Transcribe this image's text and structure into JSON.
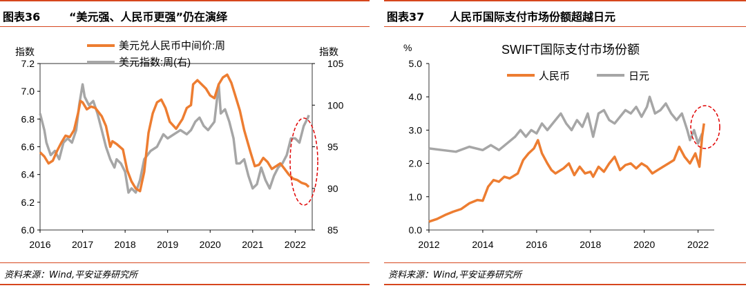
{
  "panels": [
    {
      "title_number": "图表36",
      "title_text": "“美元强、人民币更强”仍在演绎",
      "source": "资料来源：Wind,平安证券研究所"
    },
    {
      "title_number": "图表37",
      "title_text": "人民币国际支付市场份额超越日元",
      "source": "资料来源：Wind,平安证券研究所"
    }
  ],
  "chart_data": [
    {
      "type": "line",
      "title": "",
      "y_left_label": "指数",
      "y_right_label": "指数",
      "y_left_range": [
        6.0,
        7.2
      ],
      "y_left_ticks": [
        "7.2",
        "7.0",
        "6.8",
        "6.6",
        "6.4",
        "6.2",
        "6.0"
      ],
      "y_right_range": [
        85,
        105
      ],
      "y_right_ticks": [
        "105",
        "100",
        "95",
        "90",
        "85"
      ],
      "x_range": [
        2016,
        2022.4
      ],
      "x_ticks": [
        "2016",
        "2017",
        "2018",
        "2019",
        "2020",
        "2021",
        "2022"
      ],
      "colors": {
        "cny": "#ed7d31",
        "dxy": "#a6a6a6",
        "highlight": "#e00000"
      },
      "series": [
        {
          "name": "美元兑人民币中间价:周",
          "axis": "left",
          "points": [
            [
              2016.0,
              6.56
            ],
            [
              2016.1,
              6.53
            ],
            [
              2016.2,
              6.48
            ],
            [
              2016.3,
              6.5
            ],
            [
              2016.4,
              6.57
            ],
            [
              2016.5,
              6.63
            ],
            [
              2016.6,
              6.68
            ],
            [
              2016.7,
              6.67
            ],
            [
              2016.8,
              6.72
            ],
            [
              2016.9,
              6.85
            ],
            [
              2016.95,
              6.93
            ],
            [
              2017.0,
              6.92
            ],
            [
              2017.1,
              6.87
            ],
            [
              2017.2,
              6.89
            ],
            [
              2017.3,
              6.88
            ],
            [
              2017.45,
              6.82
            ],
            [
              2017.55,
              6.75
            ],
            [
              2017.65,
              6.6
            ],
            [
              2017.7,
              6.64
            ],
            [
              2017.8,
              6.62
            ],
            [
              2017.95,
              6.58
            ],
            [
              2018.05,
              6.43
            ],
            [
              2018.15,
              6.35
            ],
            [
              2018.25,
              6.3
            ],
            [
              2018.35,
              6.28
            ],
            [
              2018.45,
              6.42
            ],
            [
              2018.55,
              6.7
            ],
            [
              2018.65,
              6.84
            ],
            [
              2018.75,
              6.92
            ],
            [
              2018.85,
              6.94
            ],
            [
              2018.95,
              6.88
            ],
            [
              2019.05,
              6.78
            ],
            [
              2019.2,
              6.73
            ],
            [
              2019.35,
              6.8
            ],
            [
              2019.45,
              6.88
            ],
            [
              2019.55,
              6.9
            ],
            [
              2019.6,
              7.05
            ],
            [
              2019.7,
              7.08
            ],
            [
              2019.8,
              7.05
            ],
            [
              2019.9,
              7.02
            ],
            [
              2020.0,
              6.97
            ],
            [
              2020.1,
              6.95
            ],
            [
              2020.2,
              7.05
            ],
            [
              2020.3,
              7.1
            ],
            [
              2020.4,
              7.12
            ],
            [
              2020.5,
              7.06
            ],
            [
              2020.6,
              6.96
            ],
            [
              2020.7,
              6.86
            ],
            [
              2020.8,
              6.72
            ],
            [
              2020.95,
              6.56
            ],
            [
              2021.05,
              6.46
            ],
            [
              2021.15,
              6.47
            ],
            [
              2021.25,
              6.52
            ],
            [
              2021.35,
              6.49
            ],
            [
              2021.45,
              6.44
            ],
            [
              2021.55,
              6.46
            ],
            [
              2021.65,
              6.48
            ],
            [
              2021.75,
              6.44
            ],
            [
              2021.85,
              6.4
            ],
            [
              2021.95,
              6.37
            ],
            [
              2022.05,
              6.36
            ],
            [
              2022.15,
              6.34
            ],
            [
              2022.25,
              6.33
            ],
            [
              2022.32,
              6.31
            ]
          ]
        },
        {
          "name": "美元指数:周(右)",
          "axis": "right",
          "points": [
            [
              2016.0,
              99
            ],
            [
              2016.1,
              97
            ],
            [
              2016.15,
              95.5
            ],
            [
              2016.25,
              94
            ],
            [
              2016.35,
              94.5
            ],
            [
              2016.45,
              93.5
            ],
            [
              2016.55,
              95.5
            ],
            [
              2016.65,
              96
            ],
            [
              2016.75,
              95.5
            ],
            [
              2016.85,
              97
            ],
            [
              2016.92,
              100
            ],
            [
              2017.0,
              102.5
            ],
            [
              2017.05,
              101
            ],
            [
              2017.15,
              100
            ],
            [
              2017.25,
              100.5
            ],
            [
              2017.35,
              99
            ],
            [
              2017.45,
              97
            ],
            [
              2017.55,
              95
            ],
            [
              2017.65,
              93.5
            ],
            [
              2017.75,
              92.5
            ],
            [
              2017.8,
              93.5
            ],
            [
              2017.9,
              93
            ],
            [
              2018.0,
              92
            ],
            [
              2018.08,
              89.5
            ],
            [
              2018.15,
              90
            ],
            [
              2018.25,
              89.5
            ],
            [
              2018.35,
              91
            ],
            [
              2018.45,
              93.5
            ],
            [
              2018.6,
              94.5
            ],
            [
              2018.75,
              95
            ],
            [
              2018.9,
              96.5
            ],
            [
              2019.0,
              96
            ],
            [
              2019.15,
              96.5
            ],
            [
              2019.3,
              97
            ],
            [
              2019.45,
              96.5
            ],
            [
              2019.55,
              97
            ],
            [
              2019.65,
              98
            ],
            [
              2019.75,
              98.5
            ],
            [
              2019.85,
              97.5
            ],
            [
              2019.95,
              97
            ],
            [
              2020.1,
              98
            ],
            [
              2020.2,
              102.5
            ],
            [
              2020.25,
              99
            ],
            [
              2020.35,
              99.5
            ],
            [
              2020.45,
              98
            ],
            [
              2020.55,
              96
            ],
            [
              2020.62,
              93
            ],
            [
              2020.7,
              93
            ],
            [
              2020.8,
              93.5
            ],
            [
              2020.9,
              91.5
            ],
            [
              2021.0,
              90
            ],
            [
              2021.1,
              90.5
            ],
            [
              2021.2,
              92.5
            ],
            [
              2021.3,
              91
            ],
            [
              2021.4,
              90
            ],
            [
              2021.5,
              91.5
            ],
            [
              2021.6,
              92.5
            ],
            [
              2021.7,
              93
            ],
            [
              2021.8,
              94
            ],
            [
              2021.9,
              96
            ],
            [
              2022.0,
              96
            ],
            [
              2022.1,
              95.5
            ],
            [
              2022.2,
              97.5
            ],
            [
              2022.3,
              98.5
            ],
            [
              2022.32,
              98.8
            ]
          ]
        }
      ],
      "annotation": "highlight-ellipse"
    },
    {
      "type": "line",
      "title": "SWIFT国际支付市场份额",
      "y_label": "%",
      "y_range": [
        0.0,
        5.0
      ],
      "y_ticks": [
        "5.0",
        "4.0",
        "3.0",
        "2.0",
        "1.0",
        "0.0"
      ],
      "x_range": [
        2012,
        2022.6
      ],
      "x_ticks": [
        "2012",
        "2014",
        "2016",
        "2018",
        "2020",
        "2022"
      ],
      "colors": {
        "rmb": "#ed7d31",
        "jpy": "#a6a6a6",
        "highlight": "#e00000"
      },
      "series": [
        {
          "name": "人民币",
          "points": [
            [
              2012.0,
              0.25
            ],
            [
              2012.3,
              0.33
            ],
            [
              2012.6,
              0.45
            ],
            [
              2012.9,
              0.55
            ],
            [
              2013.2,
              0.63
            ],
            [
              2013.5,
              0.8
            ],
            [
              2013.8,
              0.9
            ],
            [
              2014.0,
              0.88
            ],
            [
              2014.2,
              1.3
            ],
            [
              2014.4,
              1.5
            ],
            [
              2014.6,
              1.45
            ],
            [
              2014.8,
              1.6
            ],
            [
              2015.0,
              1.55
            ],
            [
              2015.3,
              1.7
            ],
            [
              2015.5,
              2.1
            ],
            [
              2015.7,
              2.3
            ],
            [
              2015.9,
              2.45
            ],
            [
              2016.05,
              2.7
            ],
            [
              2016.2,
              2.3
            ],
            [
              2016.4,
              2.0
            ],
            [
              2016.55,
              1.8
            ],
            [
              2016.7,
              1.7
            ],
            [
              2017.0,
              1.85
            ],
            [
              2017.2,
              2.0
            ],
            [
              2017.4,
              1.65
            ],
            [
              2017.6,
              1.9
            ],
            [
              2017.8,
              1.7
            ],
            [
              2018.0,
              1.75
            ],
            [
              2018.1,
              1.6
            ],
            [
              2018.3,
              1.9
            ],
            [
              2018.5,
              1.75
            ],
            [
              2018.7,
              2.0
            ],
            [
              2018.9,
              2.2
            ],
            [
              2019.1,
              1.8
            ],
            [
              2019.3,
              1.95
            ],
            [
              2019.5,
              2.0
            ],
            [
              2019.7,
              1.85
            ],
            [
              2019.9,
              2.0
            ],
            [
              2020.1,
              1.9
            ],
            [
              2020.3,
              1.7
            ],
            [
              2020.5,
              1.8
            ],
            [
              2020.7,
              1.9
            ],
            [
              2020.9,
              2.0
            ],
            [
              2021.1,
              2.1
            ],
            [
              2021.3,
              2.5
            ],
            [
              2021.5,
              2.2
            ],
            [
              2021.7,
              2.0
            ],
            [
              2021.9,
              2.3
            ],
            [
              2022.05,
              1.9
            ],
            [
              2022.15,
              2.8
            ],
            [
              2022.22,
              3.2
            ]
          ]
        },
        {
          "name": "日元",
          "points": [
            [
              2012.0,
              2.45
            ],
            [
              2012.5,
              2.4
            ],
            [
              2013.0,
              2.35
            ],
            [
              2013.5,
              2.5
            ],
            [
              2014.0,
              2.4
            ],
            [
              2014.3,
              2.55
            ],
            [
              2014.6,
              2.4
            ],
            [
              2014.9,
              2.6
            ],
            [
              2015.2,
              2.8
            ],
            [
              2015.4,
              3.0
            ],
            [
              2015.6,
              2.8
            ],
            [
              2015.8,
              3.0
            ],
            [
              2016.0,
              2.9
            ],
            [
              2016.2,
              3.2
            ],
            [
              2016.4,
              3.0
            ],
            [
              2016.7,
              3.3
            ],
            [
              2016.9,
              3.5
            ],
            [
              2017.1,
              3.2
            ],
            [
              2017.3,
              3.0
            ],
            [
              2017.5,
              3.3
            ],
            [
              2017.7,
              3.1
            ],
            [
              2017.9,
              3.5
            ],
            [
              2018.1,
              2.8
            ],
            [
              2018.3,
              3.5
            ],
            [
              2018.5,
              3.6
            ],
            [
              2018.7,
              3.3
            ],
            [
              2018.9,
              3.2
            ],
            [
              2019.1,
              3.4
            ],
            [
              2019.3,
              3.6
            ],
            [
              2019.5,
              3.5
            ],
            [
              2019.7,
              3.7
            ],
            [
              2019.9,
              3.4
            ],
            [
              2020.1,
              3.7
            ],
            [
              2020.2,
              4.0
            ],
            [
              2020.4,
              3.5
            ],
            [
              2020.6,
              3.6
            ],
            [
              2020.8,
              3.8
            ],
            [
              2021.0,
              3.5
            ],
            [
              2021.2,
              3.3
            ],
            [
              2021.4,
              3.5
            ],
            [
              2021.6,
              3.0
            ],
            [
              2021.7,
              2.7
            ],
            [
              2021.85,
              3.0
            ],
            [
              2022.0,
              2.6
            ],
            [
              2022.15,
              2.9
            ]
          ]
        }
      ],
      "annotation": "highlight-ellipse"
    }
  ]
}
